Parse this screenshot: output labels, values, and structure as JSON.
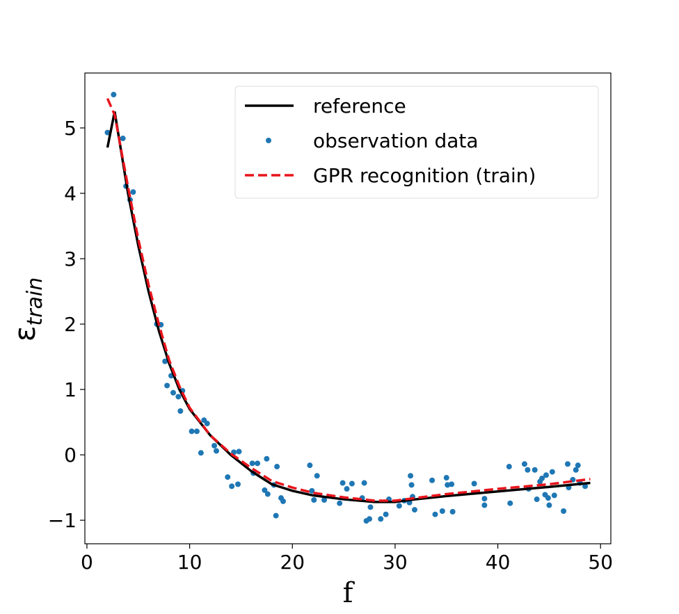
{
  "chart_data": {
    "type": "line",
    "xlabel": "f",
    "ylabel": "ε",
    "ylabel_subscript": "train",
    "xlim": [
      -0.2,
      51
    ],
    "ylim": [
      -1.36,
      5.84
    ],
    "xticks": [
      0,
      10,
      20,
      30,
      40,
      50
    ],
    "yticks": [
      {
        "value": -1,
        "label": "−1"
      },
      0,
      1,
      2,
      3,
      4,
      5
    ],
    "grid": false,
    "legend": "upper right",
    "series": [
      {
        "name": "reference",
        "mark": "line",
        "dash": false,
        "color": "#000000",
        "x": [
          2,
          2.7,
          4,
          5,
          6,
          7,
          8,
          9,
          10,
          12,
          14,
          16,
          18,
          20,
          22,
          25,
          28,
          30,
          32,
          35,
          40,
          45,
          49
        ],
        "values": [
          4.7,
          5.25,
          4.0,
          3.2,
          2.5,
          1.9,
          1.4,
          1.0,
          0.7,
          0.3,
          0.0,
          -0.25,
          -0.45,
          -0.55,
          -0.62,
          -0.68,
          -0.72,
          -0.72,
          -0.68,
          -0.63,
          -0.56,
          -0.49,
          -0.43
        ]
      },
      {
        "name": "observation data",
        "mark": "scatter",
        "dash": false,
        "color": "#1f77b4",
        "x": [
          2.0,
          2.6,
          3.5,
          3.8,
          4.2,
          4.5,
          6.8,
          7.2,
          7.6,
          7.8,
          8.2,
          8.4,
          8.9,
          9.1,
          9.3,
          10.2,
          10.7,
          11.1,
          11.4,
          11.7,
          12.4,
          12.6,
          13.7,
          14.1,
          14.3,
          14.8,
          14.7,
          16.1,
          16.2,
          16.6,
          17.5,
          17.3,
          17.6,
          18.2,
          18.4,
          18.5,
          18.9,
          19.1,
          21.7,
          21.9,
          22.1,
          22.4,
          23.1,
          24.6,
          24.9,
          25.3,
          25.8,
          26.8,
          27.0,
          27.2,
          27.5,
          27.6,
          28.6,
          29.1,
          29.4,
          30.4,
          30.9,
          31.4,
          31.5,
          31.6,
          31.7,
          31.9,
          33.6,
          33.9,
          34.6,
          35.0,
          35.1,
          35.5,
          35.6,
          37.7,
          38.7,
          38.7,
          41.1,
          41.2,
          42.6,
          42.9,
          43.0,
          43.6,
          43.8,
          44.1,
          44.3,
          44.6,
          44.7,
          44.9,
          45.0,
          45.3,
          45.5,
          46.4,
          46.8,
          46.9,
          47.3,
          47.6,
          47.8,
          48.0,
          48.5
        ],
        "values": [
          4.93,
          5.51,
          4.84,
          4.11,
          3.9,
          4.02,
          2.0,
          1.99,
          1.43,
          1.06,
          1.21,
          0.95,
          0.89,
          0.67,
          0.98,
          0.36,
          0.36,
          0.03,
          0.53,
          0.48,
          0.14,
          0.06,
          -0.34,
          -0.48,
          0.04,
          0.05,
          -0.45,
          -0.13,
          -0.28,
          -0.13,
          -0.06,
          -0.54,
          -0.6,
          -0.46,
          -0.93,
          -0.18,
          -0.66,
          -0.71,
          -0.16,
          -0.55,
          -0.69,
          -0.32,
          -0.69,
          -0.74,
          -0.43,
          -0.52,
          -0.44,
          -0.66,
          -0.43,
          -1.01,
          -0.98,
          -0.8,
          -0.98,
          -0.91,
          -0.68,
          -0.78,
          -0.7,
          -0.73,
          -0.32,
          -0.46,
          -0.64,
          -0.84,
          -0.39,
          -0.91,
          -0.86,
          -0.35,
          -0.46,
          -0.45,
          -0.87,
          -0.44,
          -0.67,
          -0.77,
          -0.18,
          -0.74,
          -0.14,
          -0.23,
          -0.52,
          -0.23,
          -0.68,
          -0.41,
          -0.36,
          -0.61,
          -0.31,
          -0.66,
          -0.77,
          -0.26,
          -0.62,
          -0.86,
          -0.14,
          -0.5,
          -0.38,
          -0.23,
          -0.16,
          -0.43,
          -0.48
        ]
      },
      {
        "name": "GPR recognition (train)",
        "mark": "line",
        "dash": true,
        "color": "#e8141c",
        "x": [
          2,
          2.7,
          4,
          5,
          6,
          7,
          8,
          9,
          10,
          12,
          14,
          16,
          18,
          20,
          22,
          25,
          28,
          30,
          32,
          35,
          40,
          45,
          49
        ],
        "values": [
          5.45,
          5.2,
          4.1,
          3.3,
          2.6,
          2.0,
          1.45,
          1.05,
          0.72,
          0.3,
          0.02,
          -0.2,
          -0.4,
          -0.5,
          -0.58,
          -0.65,
          -0.7,
          -0.7,
          -0.66,
          -0.6,
          -0.52,
          -0.45,
          -0.37
        ]
      }
    ]
  }
}
